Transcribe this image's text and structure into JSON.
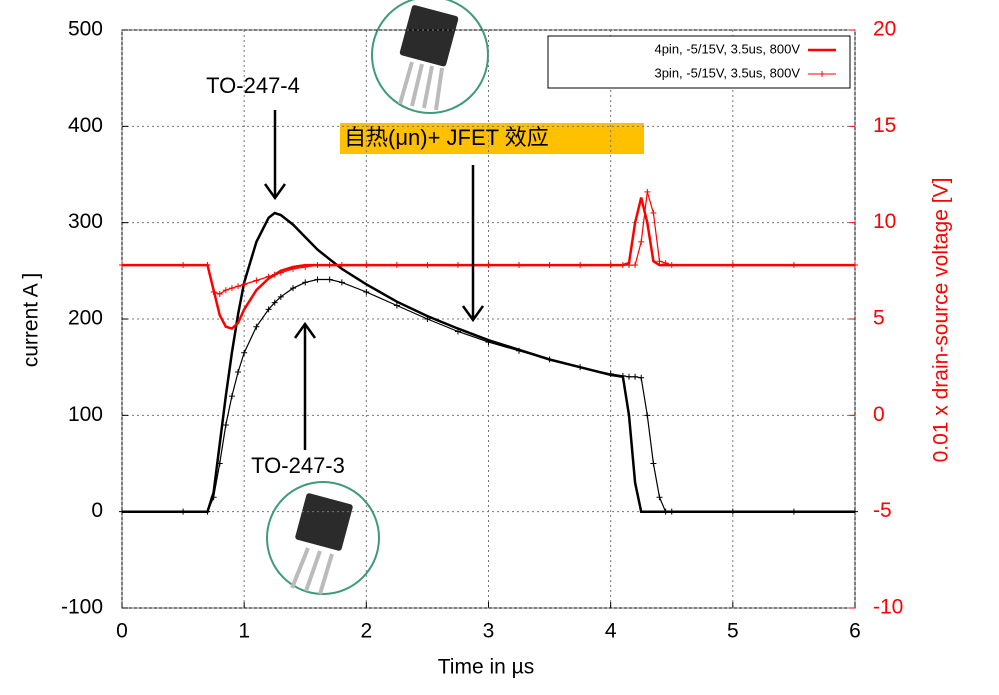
{
  "chart_data": {
    "type": "line",
    "xlabel": "Time in µs",
    "ylabel": "current A ]",
    "y2label": "0.01 x drain-source voltage [V]",
    "annotations": [
      "TO-247-4",
      "自热(μn)+ JFET 效应",
      "TO-247-3"
    ],
    "x": [
      0,
      0.5,
      0.7,
      0.75,
      0.8,
      0.85,
      0.9,
      0.95,
      1,
      1.1,
      1.2,
      1.25,
      1.3,
      1.4,
      1.5,
      1.6,
      1.7,
      1.8,
      2,
      2.25,
      2.5,
      2.75,
      3,
      3.25,
      3.5,
      3.75,
      4,
      4.1,
      4.15,
      4.2,
      4.25,
      4.3,
      4.35,
      4.4,
      4.45,
      4.5,
      5,
      5.5,
      6
    ],
    "series": [
      {
        "name": "4pin, -5/15V, 3.5us, 800V",
        "color": "#000000",
        "marker": "line",
        "values": [
          0,
          0,
          0,
          20,
          70,
          120,
          165,
          205,
          238,
          280,
          305,
          310,
          308,
          298,
          285,
          272,
          262,
          252,
          236,
          218,
          203,
          190,
          178,
          168,
          158,
          150,
          142,
          140,
          100,
          30,
          0,
          0,
          0,
          0,
          0,
          0,
          0,
          0,
          0
        ]
      },
      {
        "name": "3pin, -5/15V, 3.5us, 800V",
        "color": "#000000",
        "marker": "+",
        "values": [
          0,
          0,
          0,
          15,
          50,
          90,
          120,
          145,
          165,
          192,
          210,
          217,
          223,
          232,
          238,
          241,
          241,
          238,
          228,
          214,
          200,
          187,
          176,
          167,
          158,
          150,
          143,
          141,
          140,
          140,
          139,
          100,
          50,
          15,
          0,
          0,
          0,
          0,
          0
        ]
      },
      {
        "name": "4pin, -5/15V, 3.5us, 800V",
        "color": "#ff0000",
        "marker": "line",
        "axis": "y2",
        "values": [
          7.8,
          7.8,
          7.8,
          6.5,
          5.2,
          4.6,
          4.5,
          4.8,
          5.5,
          6.5,
          7.1,
          7.3,
          7.5,
          7.7,
          7.8,
          7.8,
          7.8,
          7.8,
          7.8,
          7.8,
          7.8,
          7.8,
          7.8,
          7.8,
          7.8,
          7.8,
          7.8,
          7.8,
          7.9,
          10,
          11.3,
          10,
          8,
          7.8,
          7.8,
          7.8,
          7.8,
          7.8,
          7.8
        ]
      },
      {
        "name": "3pin, -5/15V, 3.5us, 800V",
        "color": "#ff0000",
        "marker": "+",
        "axis": "y2",
        "values": [
          7.8,
          7.8,
          7.8,
          6.4,
          6.3,
          6.5,
          6.6,
          6.7,
          6.8,
          7.0,
          7.2,
          7.3,
          7.4,
          7.6,
          7.7,
          7.8,
          7.8,
          7.8,
          7.8,
          7.8,
          7.8,
          7.8,
          7.8,
          7.8,
          7.8,
          7.8,
          7.8,
          7.8,
          7.8,
          7.8,
          9,
          11.6,
          10.5,
          8,
          7.9,
          7.8,
          7.8,
          7.8,
          7.8
        ]
      }
    ],
    "legend_series": [
      0,
      1
    ],
    "legend_colors": [
      "#ff0000",
      "#ff0000"
    ],
    "xlim": [
      0,
      6
    ],
    "xticks": [
      0,
      1,
      2,
      3,
      4,
      5,
      6
    ],
    "ylim": [
      -100,
      500
    ],
    "yticks": [
      -100,
      0,
      100,
      200,
      300,
      400,
      500
    ],
    "y2lim": [
      -10,
      20
    ],
    "y2ticks": [
      -10,
      -5,
      0,
      5,
      10,
      15,
      20
    ],
    "y2color": "#ff0000",
    "grid": true,
    "legend": "upper right"
  }
}
